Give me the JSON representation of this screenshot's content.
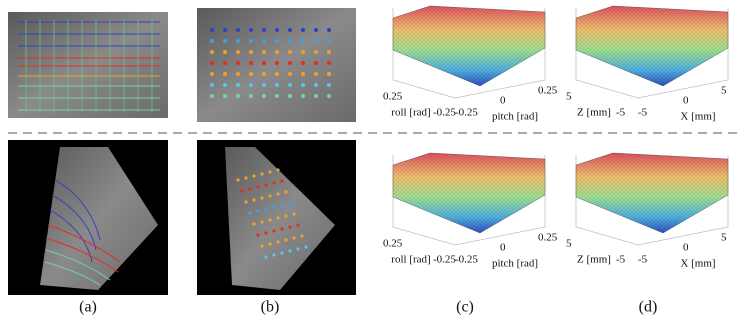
{
  "captions": [
    "(a)",
    "(b)",
    "(c)",
    "(d)"
  ],
  "surface_plots": [
    {
      "y_label": "roll [rad]",
      "x_label": "pitch [rad]",
      "y_ticks": [
        "0.25",
        "-0.25"
      ],
      "x_ticks": [
        "-0.25",
        "0",
        "0.25"
      ]
    },
    {
      "y_label": "Z [mm]",
      "x_label": "X [mm]",
      "y_ticks": [
        "5",
        "-5"
      ],
      "x_ticks": [
        "-5",
        "0",
        "5"
      ]
    },
    {
      "y_label": "roll [rad]",
      "x_label": "pitch [rad]",
      "y_ticks": [
        "0.25",
        "-0.25"
      ],
      "x_ticks": [
        "-0.25",
        "0",
        "0.25"
      ]
    },
    {
      "y_label": "Z [mm]",
      "x_label": "X [mm]",
      "y_ticks": [
        "5",
        "-5"
      ],
      "x_ticks": [
        "-5",
        "0",
        "5"
      ]
    }
  ]
}
